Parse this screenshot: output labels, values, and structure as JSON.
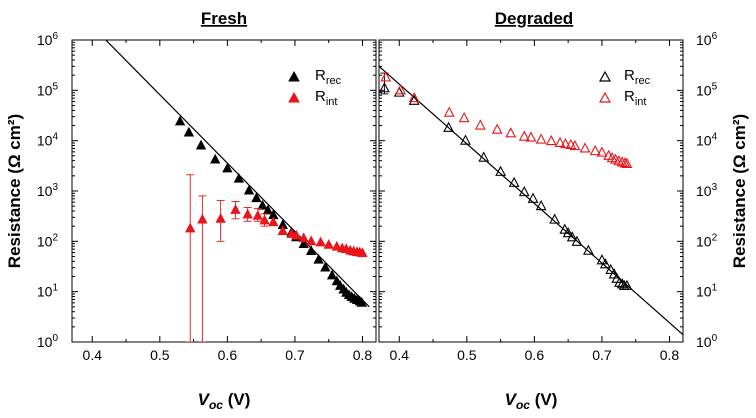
{
  "chart_data": {
    "type": "scatter",
    "y_scale": "log",
    "ylim": [
      1,
      1000000
    ],
    "ylabel": "Resistance (Ω cm²)",
    "y_tick_exponents": [
      "0",
      "1",
      "2",
      "3",
      "4",
      "5",
      "6"
    ],
    "y_tick_base": "10",
    "xlabel_main": "V",
    "xlabel_sub": "oc",
    "xlabel_unit": " (V)",
    "colors": {
      "rec": "#000000",
      "int": "#e8161b",
      "frame": "#000000"
    },
    "panels": [
      {
        "title": "Fresh",
        "xlim": [
          0.37,
          0.82
        ],
        "xticks": [
          "0.4",
          "0.5",
          "0.6",
          "0.7",
          "0.8"
        ],
        "marker": "filled-triangle",
        "fit_line": {
          "x": [
            0.42,
            0.81
          ],
          "y": [
            1000000,
            5
          ]
        },
        "legend": [
          {
            "base": "R",
            "sub": "rec",
            "series": "rec"
          },
          {
            "base": "R",
            "sub": "int",
            "series": "int"
          }
        ],
        "series": [
          {
            "name": "R_rec",
            "color_key": "rec",
            "x": [
              0.53,
              0.543,
              0.561,
              0.582,
              0.6,
              0.617,
              0.632,
              0.643,
              0.652,
              0.66,
              0.668,
              0.682,
              0.695,
              0.702,
              0.713,
              0.724,
              0.735,
              0.745,
              0.755,
              0.762,
              0.767,
              0.772,
              0.776,
              0.78,
              0.784,
              0.788,
              0.792,
              0.796,
              0.799
            ],
            "y": [
              24000,
              14500,
              8000,
              4200,
              2800,
              1750,
              1020,
              720,
              510,
              410,
              330,
              210,
              150,
              120,
              88,
              64,
              43,
              30,
              21,
              16,
              13,
              11,
              9.5,
              8.5,
              7.8,
              7.2,
              6.8,
              6.4,
              6.0
            ]
          },
          {
            "name": "R_int",
            "color_key": "int",
            "x": [
              0.545,
              0.563,
              0.59,
              0.612,
              0.63,
              0.645,
              0.655,
              0.668,
              0.682,
              0.695,
              0.702,
              0.713,
              0.724,
              0.738,
              0.75,
              0.762,
              0.77,
              0.776,
              0.782,
              0.787,
              0.792,
              0.796,
              0.8
            ],
            "y": [
              180,
              270,
              280,
              420,
              340,
              320,
              260,
              240,
              160,
              140,
              130,
              115,
              100,
              95,
              85,
              78,
              72,
              70,
              65,
              63,
              61,
              60,
              58
            ],
            "err_low": [
              1,
              1,
              100,
              280,
              250,
              250,
              200,
              null,
              null,
              null,
              null,
              null,
              null,
              null,
              null,
              null,
              null,
              null,
              null,
              null,
              null,
              null,
              null
            ],
            "err_high": [
              2100,
              800,
              650,
              620,
              470,
              450,
              350,
              null,
              null,
              null,
              null,
              null,
              null,
              null,
              null,
              null,
              null,
              null,
              null,
              null,
              null,
              null,
              null
            ]
          }
        ]
      },
      {
        "title": "Degraded",
        "xlim": [
          0.37,
          0.82
        ],
        "xticks": [
          "0.4",
          "0.5",
          "0.6",
          "0.7",
          "0.8"
        ],
        "marker": "open-triangle",
        "fit_line": {
          "x": [
            0.37,
            0.82
          ],
          "y": [
            300000,
            1.4
          ]
        },
        "legend": [
          {
            "base": "R",
            "sub": "rec",
            "series": "rec"
          },
          {
            "base": "R",
            "sub": "int",
            "series": "int"
          }
        ],
        "series": [
          {
            "name": "R_rec",
            "color_key": "rec",
            "x": [
              0.378,
              0.4,
              0.422,
              0.473,
              0.498,
              0.525,
              0.55,
              0.57,
              0.585,
              0.598,
              0.61,
              0.63,
              0.645,
              0.65,
              0.656,
              0.663,
              0.68,
              0.7,
              0.705,
              0.713,
              0.718,
              0.722,
              0.726,
              0.73,
              0.733,
              0.737
            ],
            "y": [
              110000,
              90000,
              62000,
              18000,
              10000,
              4600,
              2400,
              1450,
              950,
              700,
              500,
              270,
              170,
              145,
              120,
              98,
              65,
              42,
              35,
              27,
              22,
              18,
              15,
              14,
              13,
              13
            ],
            "err_low": [
              85000,
              null,
              null,
              null,
              null,
              null,
              null,
              null,
              null,
              null,
              null,
              null,
              null,
              null,
              null,
              null,
              null,
              null,
              null,
              null,
              null,
              null,
              null,
              null,
              null,
              null
            ],
            "err_high": [
              220000,
              null,
              null,
              null,
              null,
              null,
              null,
              null,
              null,
              null,
              null,
              null,
              null,
              null,
              null,
              null,
              null,
              null,
              null,
              null,
              null,
              null,
              null,
              null,
              null,
              null
            ]
          },
          {
            "name": "R_int",
            "color_key": "int",
            "x": [
              0.38,
              0.402,
              0.422,
              0.474,
              0.496,
              0.52,
              0.545,
              0.565,
              0.585,
              0.595,
              0.61,
              0.625,
              0.638,
              0.646,
              0.654,
              0.66,
              0.675,
              0.69,
              0.7,
              0.71,
              0.715,
              0.72,
              0.725,
              0.73,
              0.734,
              0.737
            ],
            "y": [
              180000,
              100000,
              70000,
              36000,
              28000,
              20000,
              16500,
              14000,
              12000,
              11500,
              10500,
              9800,
              9000,
              8500,
              8200,
              7800,
              7000,
              6200,
              5800,
              5000,
              4500,
              4200,
              3900,
              3700,
              3550,
              3450
            ]
          }
        ]
      }
    ]
  }
}
